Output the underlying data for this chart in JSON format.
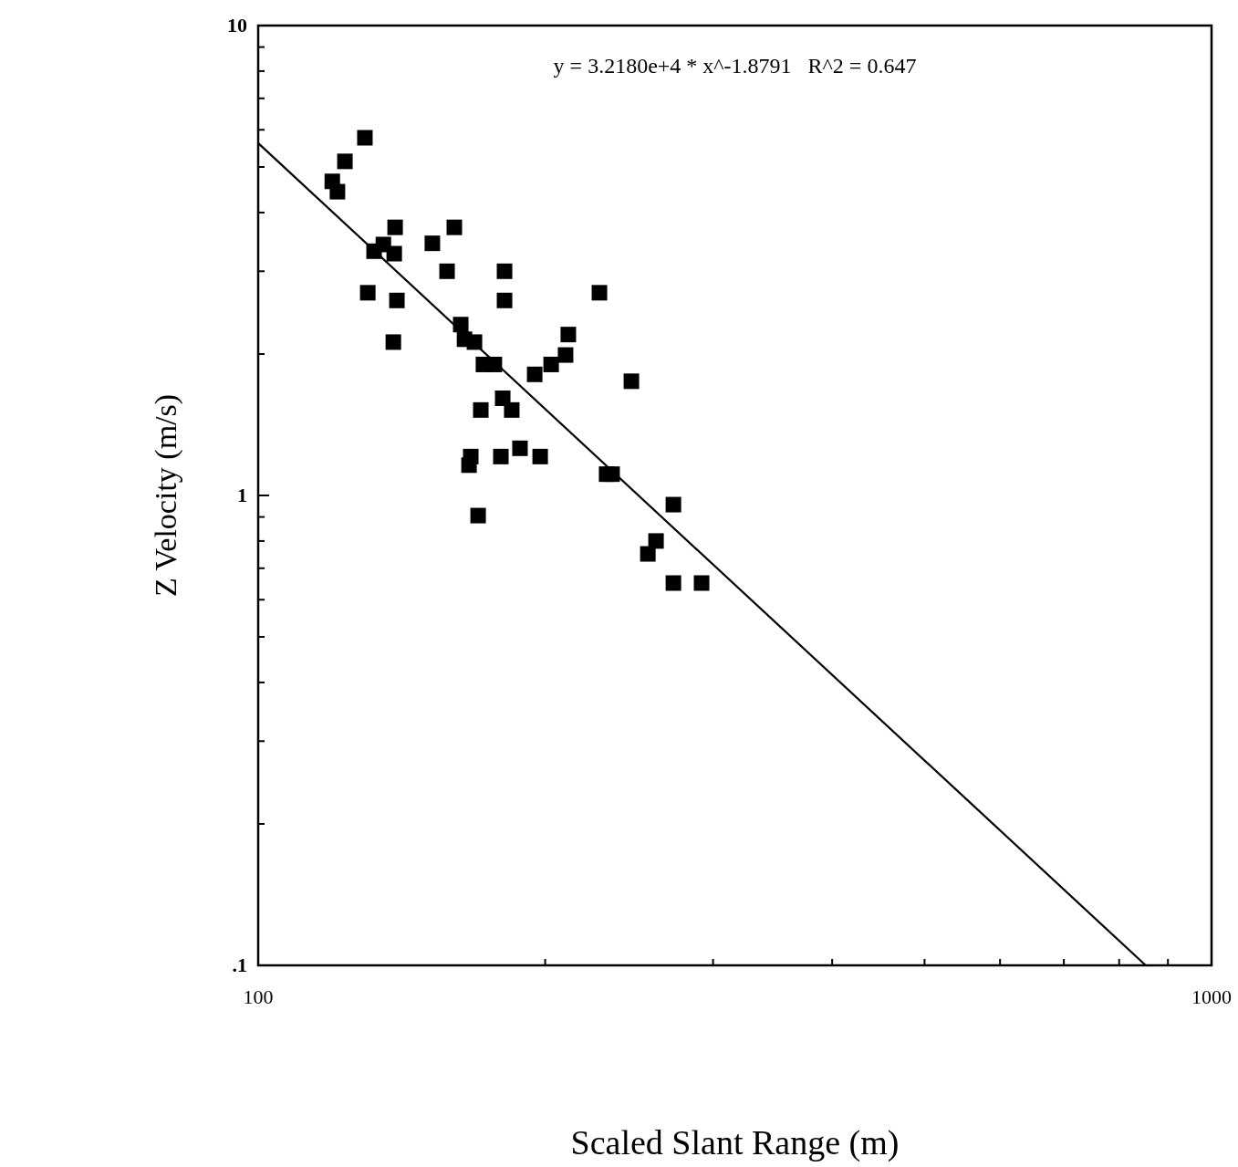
{
  "chart_data": {
    "type": "scatter",
    "xlabel": "Scaled Slant Range (m)",
    "ylabel": "Z Velocity (m/s)",
    "log": "xy",
    "grid": false,
    "marker": "square",
    "xlim": [
      100,
      1000
    ],
    "ylim": [
      0.1,
      10
    ],
    "xticks": [
      100,
      {
        "value": 200,
        "label": null
      },
      {
        "value": 300,
        "label": null
      },
      {
        "value": 400,
        "label": null
      },
      {
        "value": 500,
        "label": null
      },
      {
        "value": 600,
        "label": null
      },
      {
        "value": 700,
        "label": null
      },
      {
        "value": 800,
        "label": null
      },
      {
        "value": 900,
        "label": null
      },
      1000
    ],
    "yticks": [
      {
        "value": 0.1,
        "label": ".1"
      },
      {
        "value": 0.2,
        "label": null
      },
      {
        "value": 0.3,
        "label": null
      },
      {
        "value": 0.4,
        "label": null
      },
      {
        "value": 0.5,
        "label": null
      },
      {
        "value": 0.6,
        "label": null
      },
      {
        "value": 0.7,
        "label": null
      },
      {
        "value": 0.8,
        "label": null
      },
      {
        "value": 0.9,
        "label": null
      },
      1,
      {
        "value": 2,
        "label": null
      },
      {
        "value": 3,
        "label": null
      },
      {
        "value": 4,
        "label": null
      },
      {
        "value": 5,
        "label": null
      },
      {
        "value": 6,
        "label": null
      },
      {
        "value": 7,
        "label": null
      },
      {
        "value": 8,
        "label": null
      },
      {
        "value": 9,
        "label": null
      },
      10
    ],
    "annotations": [
      "y = 3.2180e+4 * x^-1.8791   R^2 = 0.647"
    ],
    "series": [
      {
        "color": "#000000",
        "x": [
          119.6,
          121.1,
          123.3,
          129.4,
          139.2,
          135.3,
          132.3,
          138.9,
          130.3,
          139.8,
          138.6,
          152.3,
          160.6,
          157.8,
          181.3,
          181.3,
          163.1,
          164.6,
          168.6,
          172.3,
          176.9,
          211.5,
          210.1,
          202.9,
          195.0,
          228.0,
          246.3,
          180.5,
          184.5,
          171.2,
          167.1,
          166.4,
          179.7,
          188.2,
          197.6,
          232.0,
          235.1,
          170.1,
          272.6,
          261.4,
          256.3,
          272.6,
          291.8
        ],
        "values": [
          4.66,
          4.43,
          5.14,
          5.77,
          3.72,
          3.42,
          3.31,
          3.27,
          2.7,
          2.6,
          2.12,
          3.44,
          3.72,
          3.0,
          3.0,
          2.6,
          2.31,
          2.15,
          2.12,
          1.9,
          1.9,
          2.2,
          1.99,
          1.9,
          1.81,
          2.7,
          1.75,
          1.61,
          1.52,
          1.52,
          1.21,
          1.16,
          1.21,
          1.26,
          1.21,
          1.11,
          1.11,
          0.906,
          0.956,
          0.8,
          0.751,
          0.651,
          0.651
        ]
      },
      {
        "type": "line",
        "color": "#000000",
        "marker": "none",
        "x": [
          100,
          853
        ],
        "values": [
          5.62,
          0.1
        ]
      }
    ]
  }
}
